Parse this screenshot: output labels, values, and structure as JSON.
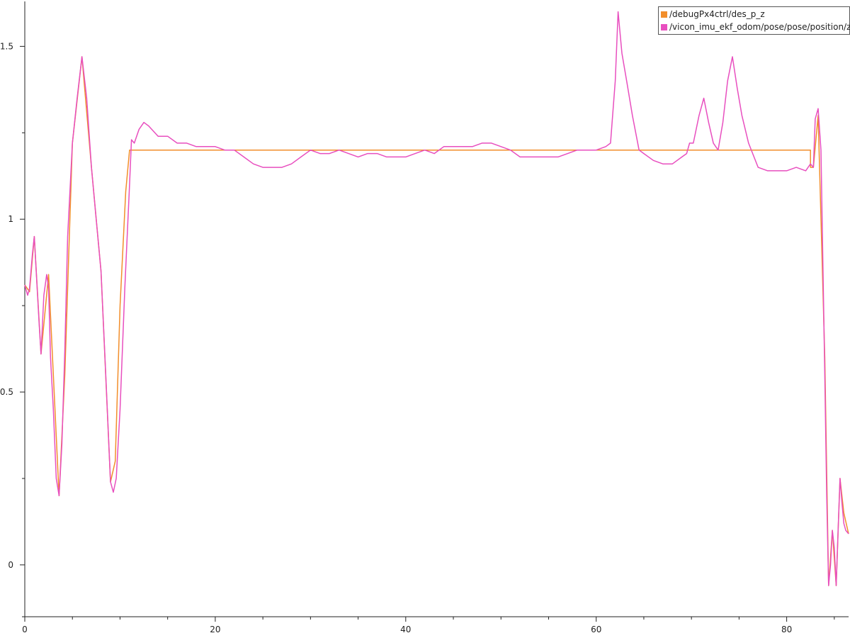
{
  "chart_data": {
    "type": "line",
    "title": "",
    "xlabel": "",
    "ylabel": "",
    "xlim": [
      0,
      86.5
    ],
    "ylim": [
      -0.15,
      1.63
    ],
    "x_ticks": [
      0,
      20,
      40,
      60,
      80
    ],
    "x_tick_labels": [
      "0",
      "20",
      "40",
      "60",
      "80"
    ],
    "y_ticks": [
      0,
      0.5,
      1,
      1.5
    ],
    "y_tick_labels": [
      "0",
      "0.5",
      "1",
      "1.5"
    ],
    "grid": false,
    "legend_position": "top-right",
    "series": [
      {
        "name": "/debugPx4ctrl/des_p_z",
        "color": "#f28e2b",
        "x": [
          0,
          0.5,
          1.0,
          1.7,
          2.5,
          3.0,
          3.6,
          4.2,
          5.0,
          6.0,
          7.0,
          8.0,
          9.0,
          9.5,
          10.0,
          10.6,
          11.0,
          12.0,
          20.0,
          40.0,
          60.0,
          82.5,
          82.5,
          82.8,
          83.3,
          84.0,
          84.4,
          84.8,
          85.2,
          85.6,
          86.0,
          86.5
        ],
        "y": [
          0.81,
          0.79,
          0.95,
          0.61,
          0.84,
          0.55,
          0.2,
          0.55,
          1.22,
          1.47,
          1.15,
          0.85,
          0.24,
          0.3,
          0.75,
          1.08,
          1.2,
          1.2,
          1.2,
          1.2,
          1.2,
          1.2,
          1.15,
          1.15,
          1.3,
          0.6,
          -0.06,
          0.1,
          -0.06,
          0.25,
          0.15,
          0.09
        ]
      },
      {
        "name": "/vicon_imu_ekf_odom/pose/pose/position/z",
        "color": "#e84fbf",
        "x": [
          0,
          0.3,
          0.5,
          0.8,
          1.0,
          1.2,
          1.5,
          1.7,
          2.0,
          2.3,
          2.5,
          2.7,
          3.0,
          3.3,
          3.6,
          3.9,
          4.2,
          4.5,
          5.0,
          5.5,
          6.0,
          6.5,
          7.0,
          7.5,
          8.0,
          8.5,
          9.0,
          9.3,
          9.6,
          10.0,
          10.5,
          11.0,
          11.2,
          11.5,
          12.0,
          12.5,
          13.0,
          14.0,
          15.0,
          16.0,
          17.0,
          18.0,
          19.0,
          20.0,
          21.0,
          22.0,
          23.0,
          24.0,
          25.0,
          26.0,
          27.0,
          28.0,
          29.0,
          30.0,
          31.0,
          32.0,
          33.0,
          34.0,
          35.0,
          36.0,
          37.0,
          38.0,
          39.0,
          40.0,
          41.0,
          42.0,
          43.0,
          44.0,
          45.0,
          46.0,
          47.0,
          48.0,
          49.0,
          50.0,
          51.0,
          52.0,
          53.0,
          54.0,
          55.0,
          56.0,
          57.0,
          58.0,
          59.0,
          60.0,
          61.0,
          61.5,
          62.0,
          62.3,
          62.7,
          63.2,
          63.8,
          64.5,
          65.0,
          66.0,
          67.0,
          68.0,
          69.0,
          69.5,
          69.8,
          70.2,
          70.8,
          71.3,
          71.8,
          72.3,
          72.8,
          73.3,
          73.8,
          74.3,
          74.8,
          75.3,
          76.0,
          77.0,
          78.0,
          79.0,
          80.0,
          81.0,
          82.0,
          82.5,
          82.8,
          83.0,
          83.3,
          83.6,
          84.0,
          84.2,
          84.4,
          84.6,
          84.8,
          85.0,
          85.2,
          85.4,
          85.6,
          85.8,
          86.0,
          86.2,
          86.5
        ],
        "y": [
          0.81,
          0.78,
          0.8,
          0.9,
          0.95,
          0.85,
          0.7,
          0.61,
          0.78,
          0.84,
          0.8,
          0.6,
          0.45,
          0.25,
          0.2,
          0.35,
          0.62,
          0.95,
          1.22,
          1.35,
          1.47,
          1.35,
          1.15,
          1.0,
          0.85,
          0.55,
          0.24,
          0.21,
          0.25,
          0.45,
          0.8,
          1.1,
          1.23,
          1.22,
          1.26,
          1.28,
          1.27,
          1.24,
          1.24,
          1.22,
          1.22,
          1.21,
          1.21,
          1.21,
          1.2,
          1.2,
          1.18,
          1.16,
          1.15,
          1.15,
          1.15,
          1.16,
          1.18,
          1.2,
          1.19,
          1.19,
          1.2,
          1.19,
          1.18,
          1.19,
          1.19,
          1.18,
          1.18,
          1.18,
          1.19,
          1.2,
          1.19,
          1.21,
          1.21,
          1.21,
          1.21,
          1.22,
          1.22,
          1.21,
          1.2,
          1.18,
          1.18,
          1.18,
          1.18,
          1.18,
          1.19,
          1.2,
          1.2,
          1.2,
          1.21,
          1.22,
          1.4,
          1.6,
          1.48,
          1.4,
          1.3,
          1.2,
          1.19,
          1.17,
          1.16,
          1.16,
          1.18,
          1.19,
          1.22,
          1.22,
          1.3,
          1.35,
          1.28,
          1.22,
          1.2,
          1.28,
          1.4,
          1.47,
          1.38,
          1.3,
          1.22,
          1.15,
          1.14,
          1.14,
          1.14,
          1.15,
          1.14,
          1.16,
          1.15,
          1.29,
          1.32,
          1.2,
          0.55,
          0.2,
          -0.06,
          0.0,
          0.1,
          0.05,
          -0.06,
          0.1,
          0.25,
          0.18,
          0.12,
          0.1,
          0.09
        ]
      }
    ]
  }
}
